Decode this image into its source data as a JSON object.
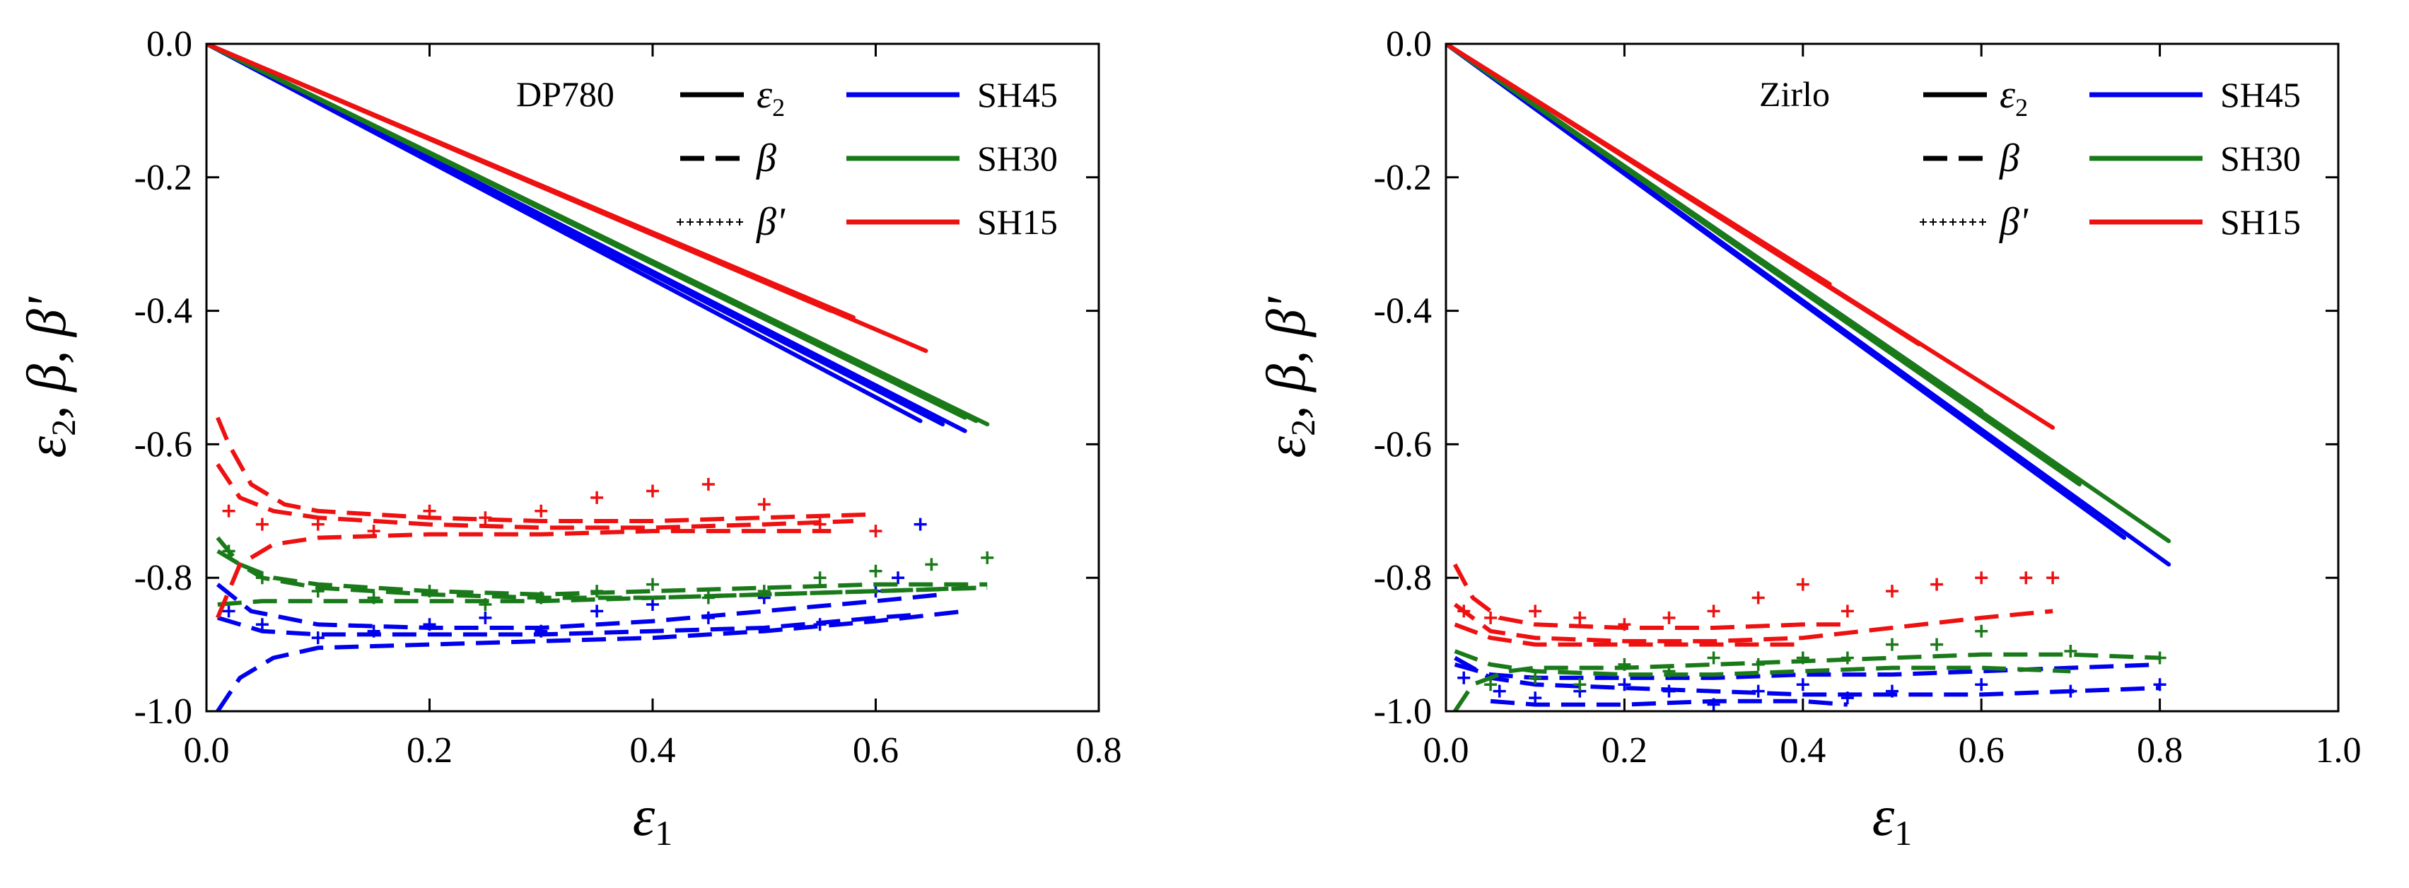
{
  "colors": {
    "SH45": "#0000ee",
    "SH30": "#1a7a1a",
    "SH15": "#ee1111",
    "axis": "#000000"
  },
  "chart_data": [
    {
      "type": "line",
      "material": "DP780",
      "xlabel": "ε1",
      "ylabel": "ε2, β, β'",
      "xlim": [
        0,
        0.8
      ],
      "ylim": [
        -1.0,
        0.0
      ],
      "xticks": [
        "0.0",
        "0.2",
        "0.4",
        "0.6",
        "0.8"
      ],
      "yticks": [
        "0.0",
        "-0.2",
        "-0.4",
        "-0.6",
        "-0.8",
        "-1.0"
      ],
      "legend_styles": [
        {
          "symbol": "ε",
          "sub": "2",
          "style": "solid"
        },
        {
          "symbol": "β",
          "sub": "",
          "style": "dashed"
        },
        {
          "symbol": "β'",
          "sub": "",
          "style": "dotted"
        }
      ],
      "legend_series": [
        "SH45",
        "SH30",
        "SH15"
      ],
      "series": [
        {
          "name": "SH45",
          "strain": [
            {
              "end": [
                0.64,
                -0.565
              ]
            },
            {
              "end": [
                0.66,
                -0.57
              ]
            },
            {
              "end": [
                0.68,
                -0.58
              ]
            }
          ],
          "beta": [
            {
              "x": [
                0.01,
                0.03,
                0.06,
                0.1,
                0.2,
                0.3,
                0.4,
                0.5,
                0.6,
                0.68
              ],
              "y": [
                -1.0,
                -0.95,
                -0.92,
                -0.905,
                -0.9,
                -0.895,
                -0.89,
                -0.88,
                -0.865,
                -0.85
              ]
            },
            {
              "x": [
                0.01,
                0.04,
                0.1,
                0.2,
                0.3,
                0.4,
                0.5,
                0.6,
                0.66
              ],
              "y": [
                -0.81,
                -0.85,
                -0.87,
                -0.875,
                -0.875,
                -0.865,
                -0.85,
                -0.835,
                -0.825
              ]
            },
            {
              "x": [
                0.01,
                0.05,
                0.1,
                0.2,
                0.3,
                0.4,
                0.5,
                0.6,
                0.64
              ],
              "y": [
                -0.86,
                -0.88,
                -0.885,
                -0.885,
                -0.885,
                -0.88,
                -0.875,
                -0.86,
                -0.855
              ]
            }
          ],
          "beta_prime": {
            "x": [
              0.02,
              0.05,
              0.1,
              0.15,
              0.2,
              0.25,
              0.3,
              0.35,
              0.4,
              0.45,
              0.5,
              0.55,
              0.6,
              0.62,
              0.64
            ],
            "y": [
              -0.85,
              -0.87,
              -0.89,
              -0.88,
              -0.87,
              -0.86,
              -0.88,
              -0.85,
              -0.84,
              -0.86,
              -0.83,
              -0.87,
              -0.82,
              -0.8,
              -0.72
            ]
          }
        },
        {
          "name": "SH30",
          "strain": [
            {
              "end": [
                0.69,
                -0.565
              ]
            },
            {
              "end": [
                0.7,
                -0.57
              ]
            },
            {
              "end": [
                0.68,
                -0.56
              ]
            }
          ],
          "beta": [
            {
              "x": [
                0.01,
                0.03,
                0.06,
                0.1,
                0.2,
                0.3,
                0.4,
                0.5,
                0.6,
                0.7
              ],
              "y": [
                -0.74,
                -0.78,
                -0.8,
                -0.81,
                -0.82,
                -0.825,
                -0.82,
                -0.815,
                -0.81,
                -0.81
              ]
            },
            {
              "x": [
                0.01,
                0.05,
                0.1,
                0.2,
                0.3,
                0.4,
                0.5,
                0.6,
                0.7
              ],
              "y": [
                -0.76,
                -0.8,
                -0.815,
                -0.825,
                -0.83,
                -0.83,
                -0.825,
                -0.82,
                -0.815
              ]
            },
            {
              "x": [
                0.01,
                0.05,
                0.1,
                0.2,
                0.3,
                0.4,
                0.5,
                0.6,
                0.69
              ],
              "y": [
                -0.84,
                -0.835,
                -0.835,
                -0.835,
                -0.835,
                -0.83,
                -0.825,
                -0.82,
                -0.815
              ]
            }
          ],
          "beta_prime": {
            "x": [
              0.02,
              0.05,
              0.1,
              0.15,
              0.2,
              0.25,
              0.3,
              0.35,
              0.4,
              0.45,
              0.5,
              0.55,
              0.6,
              0.65,
              0.7
            ],
            "y": [
              -0.76,
              -0.8,
              -0.82,
              -0.83,
              -0.82,
              -0.84,
              -0.83,
              -0.82,
              -0.81,
              -0.83,
              -0.82,
              -0.8,
              -0.79,
              -0.78,
              -0.77
            ]
          }
        },
        {
          "name": "SH15",
          "strain": [
            {
              "end": [
                0.56,
                -0.4
              ]
            },
            {
              "end": [
                0.58,
                -0.41
              ]
            },
            {
              "end": [
                0.645,
                -0.46
              ]
            }
          ],
          "beta": [
            {
              "x": [
                0.01,
                0.02,
                0.04,
                0.07,
                0.1,
                0.2,
                0.3,
                0.4,
                0.5,
                0.6
              ],
              "y": [
                -0.56,
                -0.6,
                -0.66,
                -0.69,
                -0.7,
                -0.71,
                -0.715,
                -0.715,
                -0.71,
                -0.705
              ]
            },
            {
              "x": [
                0.01,
                0.03,
                0.06,
                0.1,
                0.2,
                0.3,
                0.4,
                0.5,
                0.58
              ],
              "y": [
                -0.63,
                -0.68,
                -0.7,
                -0.71,
                -0.72,
                -0.725,
                -0.725,
                -0.72,
                -0.715
              ]
            },
            {
              "x": [
                0.01,
                0.03,
                0.06,
                0.1,
                0.2,
                0.3,
                0.4,
                0.5,
                0.56
              ],
              "y": [
                -0.86,
                -0.78,
                -0.75,
                -0.74,
                -0.735,
                -0.735,
                -0.73,
                -0.73,
                -0.73
              ]
            }
          ],
          "beta_prime": {
            "x": [
              0.02,
              0.05,
              0.1,
              0.15,
              0.2,
              0.25,
              0.3,
              0.35,
              0.4,
              0.45,
              0.5,
              0.55,
              0.6
            ],
            "y": [
              -0.7,
              -0.72,
              -0.72,
              -0.73,
              -0.7,
              -0.71,
              -0.7,
              -0.68,
              -0.67,
              -0.66,
              -0.69,
              -0.72,
              -0.73
            ]
          }
        }
      ]
    },
    {
      "type": "line",
      "material": "Zirlo",
      "xlabel": "ε1",
      "ylabel": "ε2, β, β'",
      "xlim": [
        0,
        1.0
      ],
      "ylim": [
        -1.0,
        0.0
      ],
      "xticks": [
        "0.0",
        "0.2",
        "0.4",
        "0.6",
        "0.8",
        "1.0"
      ],
      "yticks": [
        "0.0",
        "-0.2",
        "-0.4",
        "-0.6",
        "-0.8",
        "-1.0"
      ],
      "legend_styles": [
        {
          "symbol": "ε",
          "sub": "2",
          "style": "solid"
        },
        {
          "symbol": "β",
          "sub": "",
          "style": "dashed"
        },
        {
          "symbol": "β'",
          "sub": "",
          "style": "dotted"
        }
      ],
      "legend_series": [
        "SH45",
        "SH30",
        "SH15"
      ],
      "series": [
        {
          "name": "SH45",
          "strain": [
            {
              "end": [
                0.81,
                -0.78
              ]
            },
            {
              "end": [
                0.76,
                -0.74
              ]
            },
            {
              "end": [
                0.6,
                -0.55
              ]
            }
          ],
          "beta": [
            {
              "x": [
                0.01,
                0.05,
                0.1,
                0.2,
                0.3,
                0.4,
                0.5,
                0.6,
                0.7,
                0.8
              ],
              "y": [
                -0.92,
                -0.95,
                -0.96,
                -0.965,
                -0.97,
                -0.975,
                -0.975,
                -0.975,
                -0.97,
                -0.965
              ]
            },
            {
              "x": [
                0.01,
                0.05,
                0.1,
                0.2,
                0.3,
                0.4,
                0.5,
                0.6,
                0.7,
                0.8
              ],
              "y": [
                -0.93,
                -0.945,
                -0.95,
                -0.95,
                -0.95,
                -0.945,
                -0.945,
                -0.94,
                -0.935,
                -0.93
              ]
            },
            {
              "x": [
                0.05,
                0.1,
                0.2,
                0.3,
                0.4,
                0.45
              ],
              "y": [
                -0.985,
                -0.99,
                -0.99,
                -0.985,
                -0.985,
                -0.99
              ]
            }
          ],
          "beta_prime": {
            "x": [
              0.02,
              0.06,
              0.1,
              0.15,
              0.2,
              0.25,
              0.3,
              0.35,
              0.4,
              0.45,
              0.5,
              0.6,
              0.7,
              0.8
            ],
            "y": [
              -0.95,
              -0.97,
              -0.98,
              -0.97,
              -0.96,
              -0.97,
              -0.99,
              -0.97,
              -0.96,
              -0.98,
              -0.97,
              -0.96,
              -0.97,
              -0.96
            ]
          }
        },
        {
          "name": "SH30",
          "strain": [
            {
              "end": [
                0.81,
                -0.745
              ]
            },
            {
              "end": [
                0.71,
                -0.66
              ]
            },
            {
              "end": [
                0.6,
                -0.55
              ]
            }
          ],
          "beta": [
            {
              "x": [
                0.01,
                0.03,
                0.07,
                0.1,
                0.2,
                0.3,
                0.4,
                0.5,
                0.6,
                0.7,
                0.8
              ],
              "y": [
                -1.0,
                -0.96,
                -0.94,
                -0.935,
                -0.935,
                -0.93,
                -0.925,
                -0.92,
                -0.915,
                -0.915,
                -0.92
              ]
            },
            {
              "x": [
                0.01,
                0.05,
                0.1,
                0.2,
                0.3,
                0.4,
                0.5,
                0.6,
                0.7
              ],
              "y": [
                -0.91,
                -0.93,
                -0.94,
                -0.945,
                -0.945,
                -0.94,
                -0.935,
                -0.935,
                -0.94
              ]
            }
          ],
          "beta_prime": {
            "x": [
              0.05,
              0.1,
              0.15,
              0.2,
              0.25,
              0.3,
              0.35,
              0.4,
              0.45,
              0.5,
              0.55,
              0.6,
              0.7,
              0.8
            ],
            "y": [
              -0.96,
              -0.95,
              -0.96,
              -0.93,
              -0.94,
              -0.92,
              -0.93,
              -0.92,
              -0.92,
              -0.9,
              -0.9,
              -0.88,
              -0.91,
              -0.92
            ]
          }
        },
        {
          "name": "SH15",
          "strain": [
            {
              "end": [
                0.68,
                -0.575
              ]
            },
            {
              "end": [
                0.53,
                -0.45
              ]
            },
            {
              "end": [
                0.43,
                -0.36
              ]
            }
          ],
          "beta": [
            {
              "x": [
                0.01,
                0.03,
                0.06,
                0.1,
                0.2,
                0.3,
                0.4,
                0.45
              ],
              "y": [
                -0.78,
                -0.83,
                -0.86,
                -0.87,
                -0.875,
                -0.875,
                -0.87,
                -0.87
              ]
            },
            {
              "x": [
                0.01,
                0.05,
                0.1,
                0.2,
                0.3,
                0.4,
                0.5,
                0.6,
                0.68
              ],
              "y": [
                -0.84,
                -0.88,
                -0.89,
                -0.895,
                -0.895,
                -0.89,
                -0.875,
                -0.86,
                -0.85
              ]
            },
            {
              "x": [
                0.01,
                0.05,
                0.1,
                0.2,
                0.3,
                0.4
              ],
              "y": [
                -0.87,
                -0.89,
                -0.9,
                -0.9,
                -0.9,
                -0.9
              ]
            }
          ],
          "beta_prime": {
            "x": [
              0.02,
              0.05,
              0.1,
              0.15,
              0.2,
              0.25,
              0.3,
              0.35,
              0.4,
              0.45,
              0.5,
              0.55,
              0.6,
              0.65,
              0.68
            ],
            "y": [
              -0.85,
              -0.86,
              -0.85,
              -0.86,
              -0.87,
              -0.86,
              -0.85,
              -0.83,
              -0.81,
              -0.85,
              -0.82,
              -0.81,
              -0.8,
              -0.8,
              -0.8
            ]
          }
        }
      ]
    }
  ]
}
